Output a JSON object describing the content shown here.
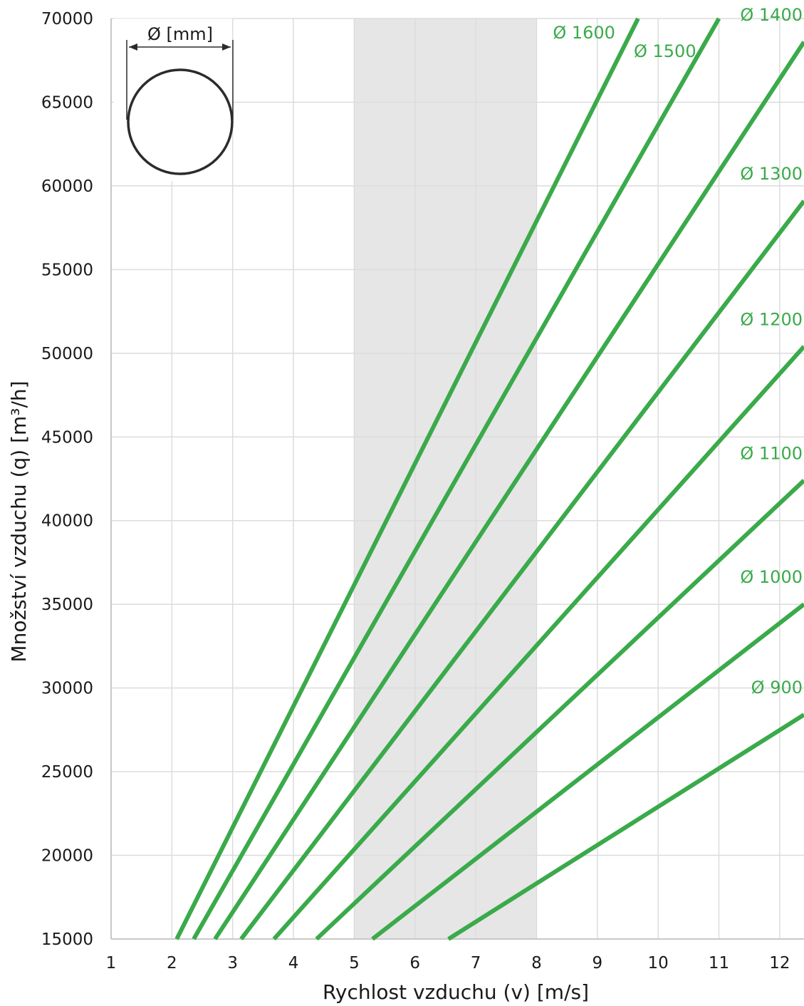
{
  "chart_data": {
    "type": "line",
    "title": "",
    "xlabel": "Rychlost vzduchu (v) [m/s]",
    "ylabel": "Množství vzduchu (q) [m³/h]",
    "xlim": [
      1,
      12.4
    ],
    "ylim": [
      15000,
      70000
    ],
    "x_ticks": [
      1,
      2,
      3,
      4,
      5,
      6,
      7,
      8,
      9,
      10,
      11,
      12
    ],
    "y_ticks": [
      15000,
      20000,
      25000,
      30000,
      35000,
      40000,
      45000,
      50000,
      55000,
      60000,
      65000,
      70000
    ],
    "x_tick_labels": [
      "1",
      "2",
      "3",
      "4",
      "5",
      "6",
      "7",
      "8",
      "9",
      "10",
      "11",
      "12"
    ],
    "y_tick_labels": [
      "15000",
      "20000",
      "25000",
      "30000",
      "35000",
      "40000",
      "45000",
      "50000",
      "55000",
      "60000",
      "65000",
      "70000"
    ],
    "grid": true,
    "shaded_range": {
      "x_from": 5,
      "x_to": 8,
      "color": "#e6e6e6"
    },
    "line_color": "#3aaa4a",
    "series": [
      {
        "name": "Ø 1600",
        "x": [
          2.08,
          9.67
        ],
        "y": [
          15000,
          70000
        ]
      },
      {
        "name": "Ø 1500",
        "x": [
          2.36,
          11.0
        ],
        "y": [
          15000,
          70000
        ]
      },
      {
        "name": "Ø 1400",
        "x": [
          2.71,
          12.4
        ],
        "y": [
          15000,
          68600
        ]
      },
      {
        "name": "Ø 1300",
        "x": [
          3.14,
          12.4
        ],
        "y": [
          15000,
          59100
        ]
      },
      {
        "name": "Ø 1200",
        "x": [
          3.68,
          12.4
        ],
        "y": [
          15000,
          50400
        ]
      },
      {
        "name": "Ø 1100",
        "x": [
          4.38,
          12.4
        ],
        "y": [
          15000,
          42400
        ]
      },
      {
        "name": "Ø 1000",
        "x": [
          5.3,
          12.4
        ],
        "y": [
          15000,
          35000
        ]
      },
      {
        "name": "Ø 900",
        "x": [
          6.55,
          12.4
        ],
        "y": [
          15000,
          28400
        ]
      }
    ],
    "legend_text": "Ø [mm]"
  }
}
